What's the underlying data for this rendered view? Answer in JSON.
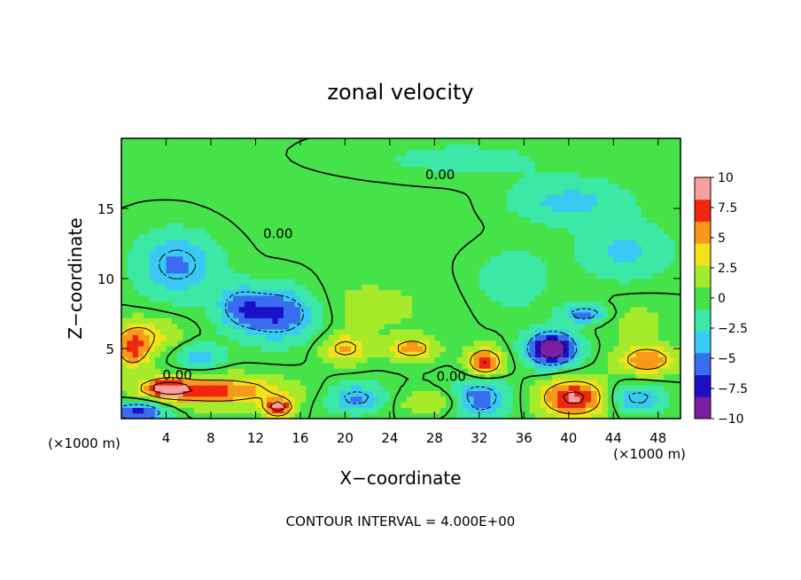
{
  "chart_data": {
    "type": "heatmap",
    "title": "zonal velocity",
    "xlabel": "X−coordinate",
    "ylabel": "Z−coordinate",
    "x_unit_left": "(×1000 m)",
    "x_unit_right": "(×1000 m)",
    "footer": "CONTOUR INTERVAL = 4.000E+00",
    "xlim": [
      0,
      50
    ],
    "ylim": [
      0,
      20
    ],
    "x_ticks": [
      4,
      8,
      12,
      16,
      20,
      24,
      28,
      32,
      36,
      40,
      44,
      48
    ],
    "y_ticks": [
      5,
      10,
      15
    ],
    "colorbar": {
      "min": -10,
      "max": 10,
      "tick_values": [
        10,
        7.5,
        5,
        2.5,
        0,
        -2.5,
        -5,
        -7.5,
        -10
      ],
      "tick_labels": [
        "10",
        "7.5",
        "5",
        "2.5",
        "0",
        "−2.5",
        "−5",
        "−7.5",
        "−10"
      ],
      "colors": [
        "#7a1fa2",
        "#1a10c8",
        "#3a6cf0",
        "#39c9f2",
        "#3ce8a6",
        "#46e24a",
        "#a6ea2c",
        "#f2e21a",
        "#f79a1c",
        "#f0260e",
        "#f7a0a0"
      ]
    },
    "contour_labels": [
      {
        "text": "0.00",
        "x": 28.5,
        "z": 17.4
      },
      {
        "text": "0.00",
        "x": 14.0,
        "z": 13.2
      },
      {
        "text": "0.00",
        "x": 5.0,
        "z": 3.1
      },
      {
        "text": "0.00",
        "x": 29.5,
        "z": 3.0
      }
    ],
    "features": [
      {
        "u": 0.3,
        "x": 22,
        "z": 16,
        "sx": 14,
        "sz": 4
      },
      {
        "u": -1.5,
        "x": 30,
        "z": 18.5,
        "sx": 10,
        "sz": 1.5
      },
      {
        "u": -3.5,
        "x": 40,
        "z": 15.5,
        "sx": 5,
        "sz": 1.5
      },
      {
        "u": -3.2,
        "x": 45,
        "z": 12,
        "sx": 4,
        "sz": 2
      },
      {
        "u": -5,
        "x": 5,
        "z": 11,
        "sx": 3.5,
        "sz": 2.2
      },
      {
        "u": -7,
        "x": 14,
        "z": 7.5,
        "sx": 3.5,
        "sz": 1.8
      },
      {
        "u": -4,
        "x": 10.5,
        "z": 8,
        "sx": 2,
        "sz": 1.5
      },
      {
        "u": 1.5,
        "x": 22,
        "z": 8,
        "sx": 6,
        "sz": 2
      },
      {
        "u": 4,
        "x": 2,
        "z": 6,
        "sx": 3,
        "sz": 1.2
      },
      {
        "u": 6,
        "x": 1,
        "z": 4.8,
        "sx": 1.5,
        "sz": 1.2
      },
      {
        "u": -4,
        "x": 7,
        "z": 4.5,
        "sx": 2,
        "sz": 0.8
      },
      {
        "u": 7,
        "x": 8.5,
        "z": 2,
        "sx": 6,
        "sz": 1
      },
      {
        "u": 10,
        "x": 14,
        "z": 0.8,
        "sx": 1.2,
        "sz": 0.6
      },
      {
        "u": 8,
        "x": 4,
        "z": 2.2,
        "sx": 2,
        "sz": 0.6
      },
      {
        "u": -8,
        "x": 1.5,
        "z": 0.5,
        "sx": 2.5,
        "sz": 0.7
      },
      {
        "u": 5,
        "x": 20,
        "z": 5,
        "sx": 2,
        "sz": 1
      },
      {
        "u": 6,
        "x": 26,
        "z": 5,
        "sx": 2,
        "sz": 0.8
      },
      {
        "u": 8.5,
        "x": 32.5,
        "z": 4,
        "sx": 1.6,
        "sz": 1
      },
      {
        "u": -6,
        "x": 32,
        "z": 1.5,
        "sx": 2.5,
        "sz": 1.5
      },
      {
        "u": -5,
        "x": 21,
        "z": 1.5,
        "sx": 2.5,
        "sz": 1
      },
      {
        "u": 3,
        "x": 28,
        "z": 1.2,
        "sx": 3,
        "sz": 0.8
      },
      {
        "u": -11,
        "x": 38.5,
        "z": 5,
        "sx": 2.2,
        "sz": 1.2
      },
      {
        "u": -6,
        "x": 41.5,
        "z": 7.5,
        "sx": 2,
        "sz": 0.6
      },
      {
        "u": 9,
        "x": 40.5,
        "z": 1.5,
        "sx": 3,
        "sz": 1.3
      },
      {
        "u": 6.5,
        "x": 47,
        "z": 4.2,
        "sx": 2.5,
        "sz": 1
      },
      {
        "u": -5,
        "x": 46,
        "z": 1.5,
        "sx": 2.5,
        "sz": 1
      },
      {
        "u": -2.5,
        "x": 35,
        "z": 10,
        "sx": 3,
        "sz": 2
      },
      {
        "u": 1.5,
        "x": 46,
        "z": 7,
        "sx": 3,
        "sz": 1.5
      }
    ]
  }
}
